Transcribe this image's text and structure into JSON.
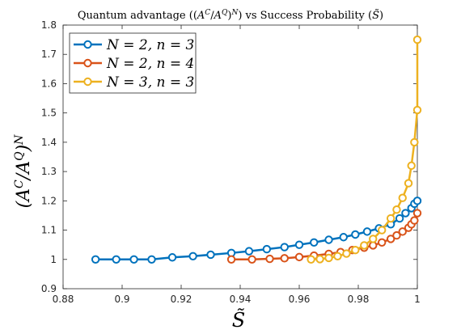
{
  "chart_data": {
    "type": "line",
    "title": "Quantum advantage ((A^C/A^Q)^N) vs Success Probability (S̃)",
    "xlabel": "S̃",
    "ylabel": "(A^C/A^Q)^N",
    "xlim": [
      0.88,
      1.0
    ],
    "ylim": [
      0.9,
      1.8
    ],
    "xticks": [
      0.88,
      0.9,
      0.92,
      0.94,
      0.96,
      0.98,
      1.0
    ],
    "xtick_labels": [
      "0.88",
      "0.9",
      "0.92",
      "0.94",
      "0.96",
      "0.98",
      "1"
    ],
    "yticks": [
      0.9,
      1.0,
      1.1,
      1.2,
      1.3,
      1.4,
      1.5,
      1.6,
      1.7,
      1.8
    ],
    "ytick_labels": [
      "0.9",
      "1",
      "1.1",
      "1.2",
      "1.3",
      "1.4",
      "1.5",
      "1.6",
      "1.7",
      "1.8"
    ],
    "grid": false,
    "legend_position": "top-left",
    "series": [
      {
        "name": "N = 2, n = 3",
        "color": "#0072BD",
        "x": [
          0.891,
          0.898,
          0.904,
          0.91,
          0.917,
          0.924,
          0.93,
          0.937,
          0.943,
          0.949,
          0.955,
          0.96,
          0.965,
          0.97,
          0.975,
          0.979,
          0.983,
          0.987,
          0.991,
          0.994,
          0.996,
          0.998,
          0.999,
          1.0
        ],
        "y": [
          1.0,
          1.0,
          1.0,
          1.0,
          1.007,
          1.011,
          1.016,
          1.022,
          1.028,
          1.035,
          1.042,
          1.05,
          1.058,
          1.067,
          1.076,
          1.085,
          1.095,
          1.106,
          1.12,
          1.14,
          1.158,
          1.175,
          1.19,
          1.2
        ]
      },
      {
        "name": "N = 2, n = 4",
        "color": "#D95319",
        "x": [
          0.937,
          0.944,
          0.95,
          0.955,
          0.96,
          0.965,
          0.97,
          0.974,
          0.978,
          0.982,
          0.985,
          0.988,
          0.991,
          0.993,
          0.995,
          0.997,
          0.998,
          0.999,
          1.0
        ],
        "y": [
          1.0,
          1.0,
          1.002,
          1.004,
          1.008,
          1.013,
          1.019,
          1.025,
          1.032,
          1.04,
          1.048,
          1.058,
          1.07,
          1.082,
          1.095,
          1.108,
          1.12,
          1.133,
          1.158
        ]
      },
      {
        "name": "N = 3, n = 3",
        "color": "#EDB120",
        "x": [
          0.964,
          0.967,
          0.97,
          0.973,
          0.976,
          0.979,
          0.982,
          0.985,
          0.988,
          0.991,
          0.993,
          0.995,
          0.997,
          0.998,
          0.999,
          1.0,
          1.0
        ],
        "y": [
          1.0,
          1.001,
          1.005,
          1.011,
          1.02,
          1.032,
          1.048,
          1.07,
          1.1,
          1.14,
          1.17,
          1.21,
          1.26,
          1.32,
          1.4,
          1.51,
          1.75
        ]
      }
    ]
  }
}
